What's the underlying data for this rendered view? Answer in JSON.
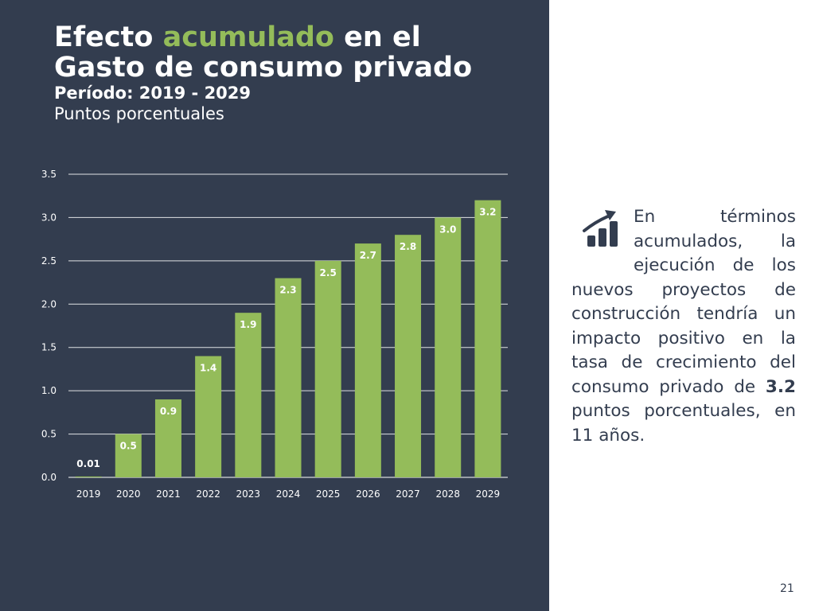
{
  "header": {
    "title_part1": "Efecto ",
    "title_accent": "acumulado",
    "title_part2": " en el",
    "title_line2": "Gasto de consumo privado",
    "period": "Período: 2019 - 2029",
    "units": "Puntos porcentuales"
  },
  "colors": {
    "panel": "#333d4f",
    "accent": "#94bc5a",
    "bar": "#94bc5a",
    "text_dark": "#333d4f"
  },
  "chart_data": {
    "type": "bar",
    "categories": [
      "2019",
      "2020",
      "2021",
      "2022",
      "2023",
      "2024",
      "2025",
      "2026",
      "2027",
      "2028",
      "2029"
    ],
    "values": [
      0.01,
      0.5,
      0.9,
      1.4,
      1.9,
      2.3,
      2.5,
      2.7,
      2.8,
      3.0,
      3.2
    ],
    "data_labels": [
      "0.01",
      "0.5",
      "0.9",
      "1.4",
      "1.9",
      "2.3",
      "2.5",
      "2.7",
      "2.8",
      "3.0",
      "3.2"
    ],
    "y_ticks": [
      "0.0",
      "0.5",
      "1.0",
      "1.5",
      "2.0",
      "2.5",
      "3.0",
      "3.5"
    ],
    "ylim": [
      0,
      3.5
    ],
    "grid": true,
    "legend": "none"
  },
  "side_text": {
    "icon": "growth-chart-icon",
    "part1": "En términos acumulados, la ejecución de los nuevos proyectos de construcción tendría un impacto positivo en la tasa de crecimiento del consumo privado de ",
    "highlight": "3.2",
    "part2": " puntos porcentuales, en 11 años."
  },
  "footer": {
    "page_number": "21"
  }
}
